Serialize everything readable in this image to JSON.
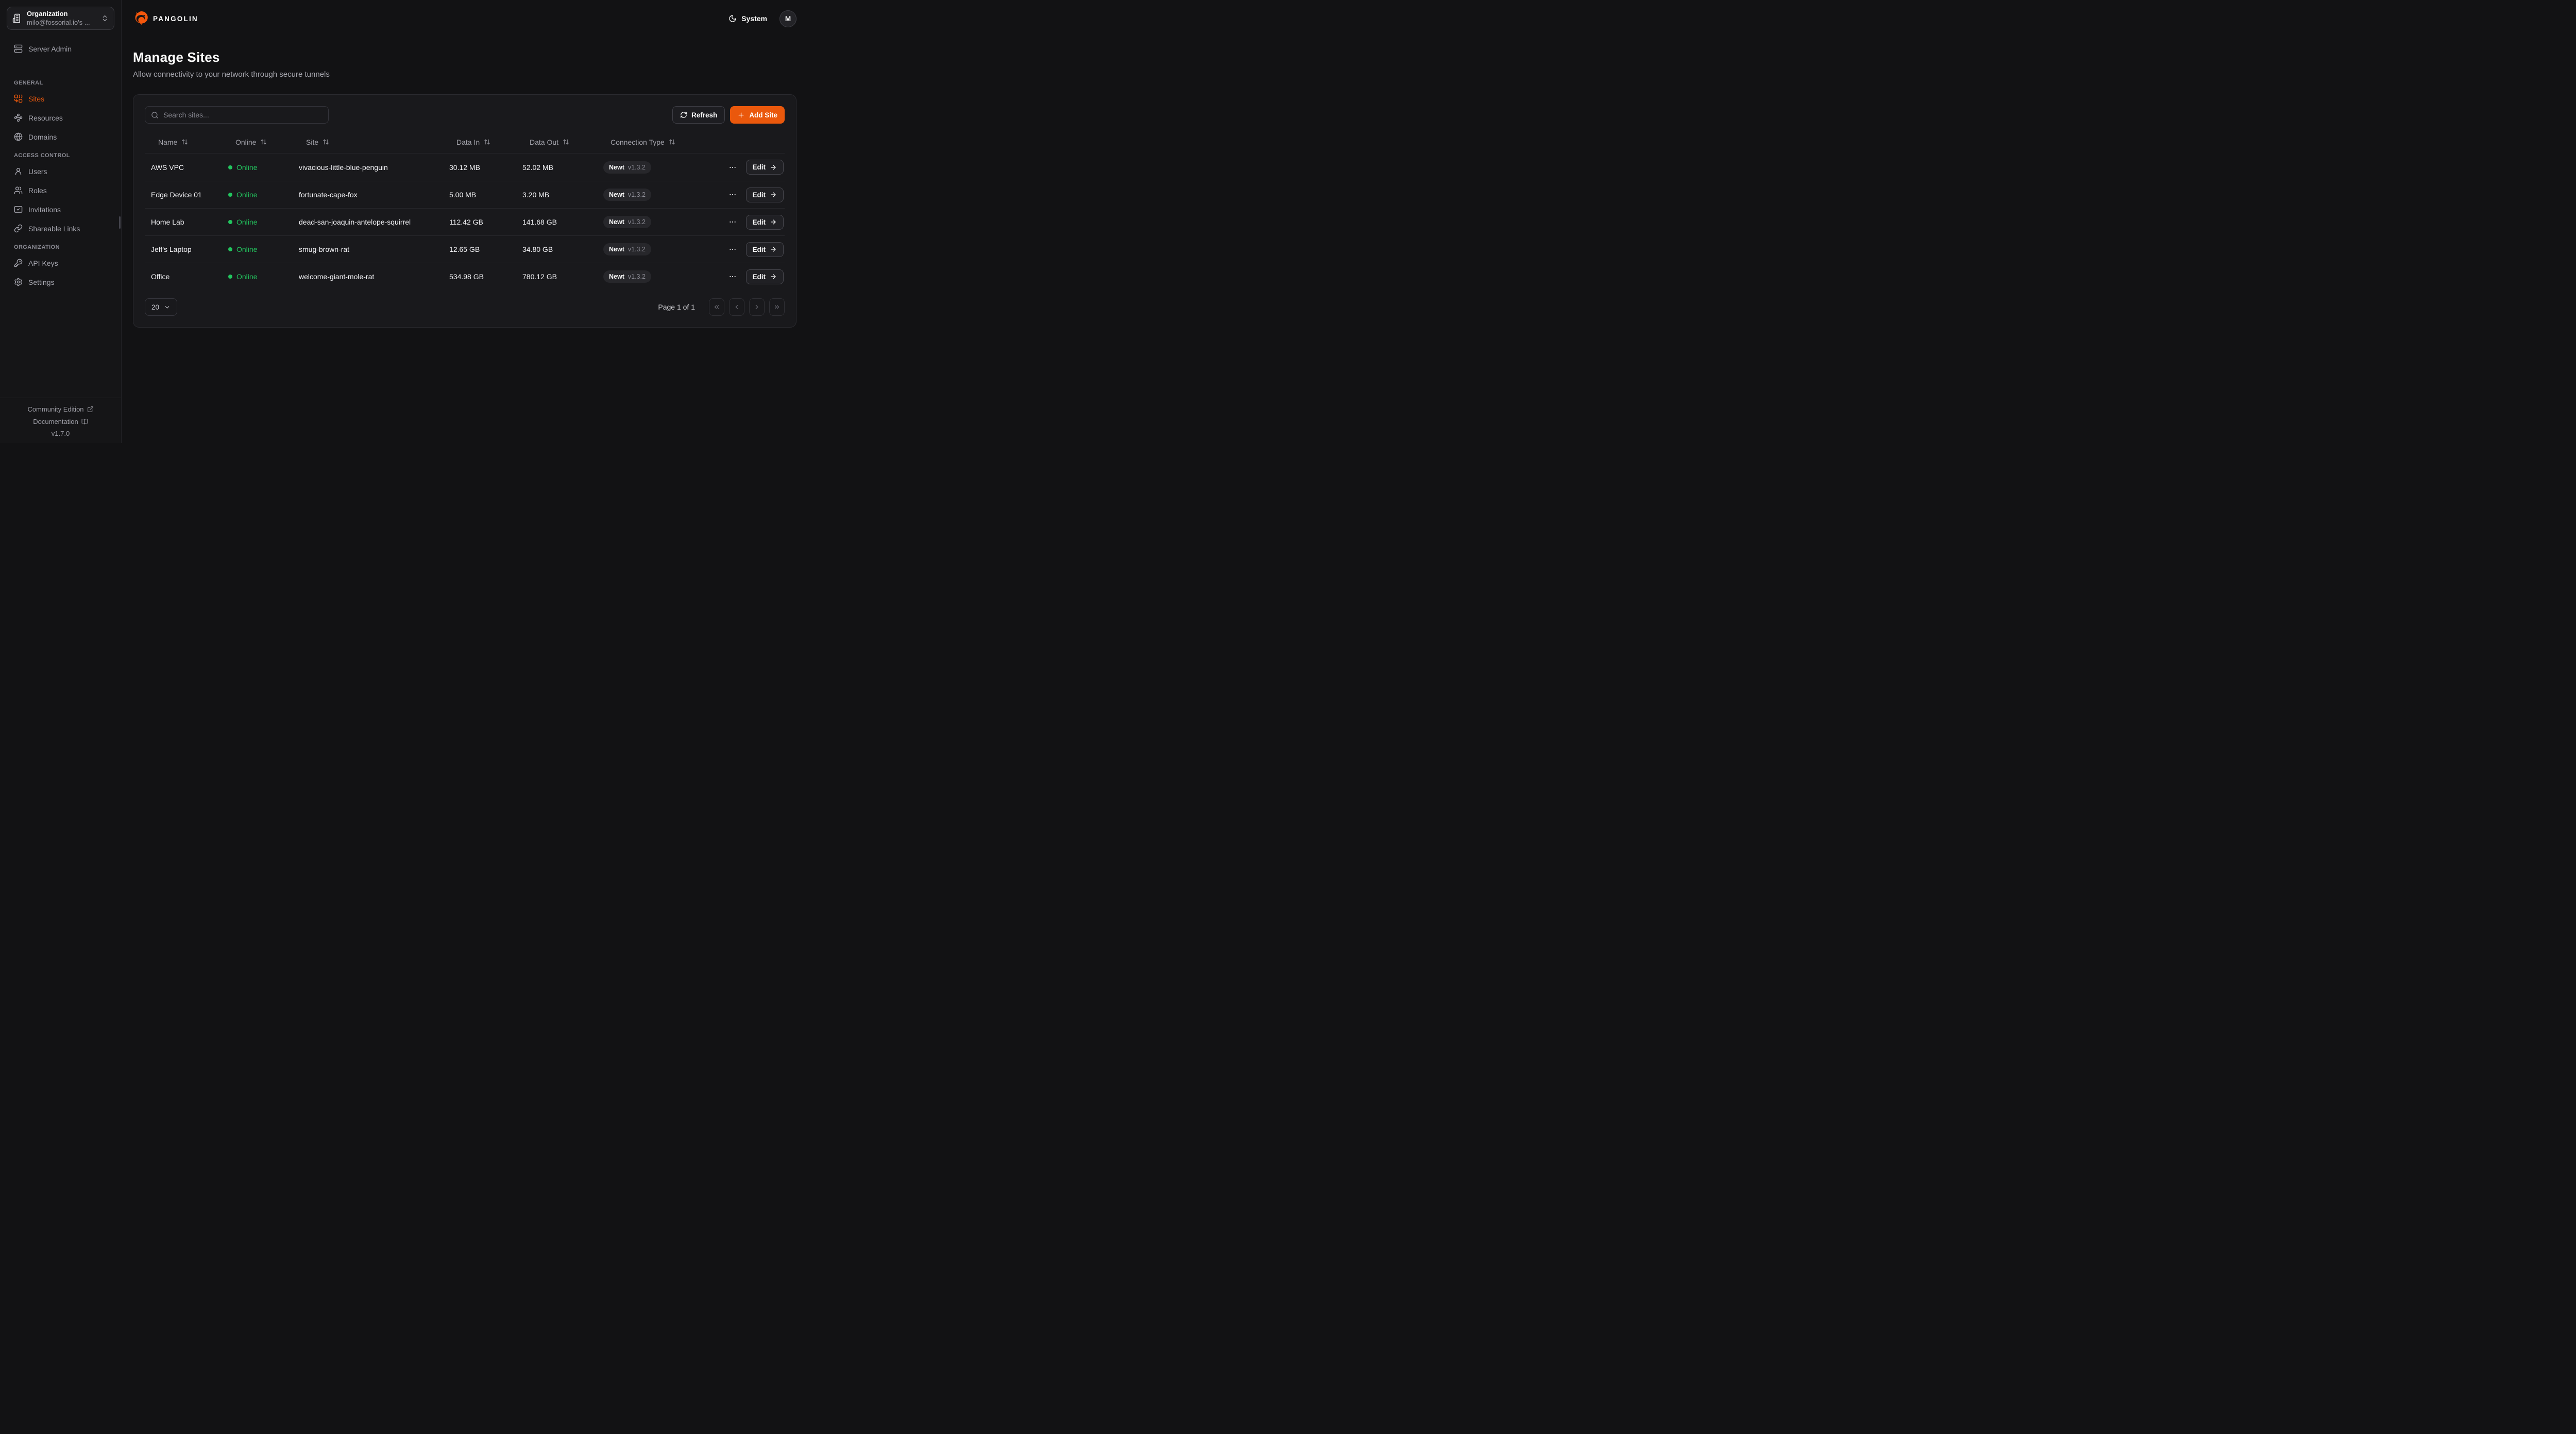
{
  "header": {
    "brand": "PANGOLIN",
    "theme_label": "System",
    "avatar_initial": "M"
  },
  "org_selector": {
    "label": "Organization",
    "value": "milo@fossorial.io's ..."
  },
  "sidebar": {
    "server_admin_label": "Server Admin",
    "sections": [
      {
        "heading": "GENERAL",
        "items": [
          {
            "label": "Sites"
          },
          {
            "label": "Resources"
          },
          {
            "label": "Domains"
          }
        ]
      },
      {
        "heading": "ACCESS CONTROL",
        "items": [
          {
            "label": "Users"
          },
          {
            "label": "Roles"
          },
          {
            "label": "Invitations"
          },
          {
            "label": "Shareable Links"
          }
        ]
      },
      {
        "heading": "ORGANIZATION",
        "items": [
          {
            "label": "API Keys"
          },
          {
            "label": "Settings"
          }
        ]
      }
    ],
    "footer": {
      "community_edition": "Community Edition",
      "documentation": "Documentation",
      "version": "v1.7.0"
    }
  },
  "page": {
    "title": "Manage Sites",
    "subtitle": "Allow connectivity to your network through secure tunnels"
  },
  "toolbar": {
    "search_placeholder": "Search sites...",
    "refresh": "Refresh",
    "add_site": "Add Site"
  },
  "table": {
    "headers": {
      "name": "Name",
      "online": "Online",
      "site": "Site",
      "data_in": "Data In",
      "data_out": "Data Out",
      "connection_type": "Connection Type"
    },
    "rows": [
      {
        "name": "AWS VPC",
        "status": "Online",
        "site": "vivacious-little-blue-penguin",
        "data_in": "30.12 MB",
        "data_out": "52.02 MB",
        "connection": "Newt",
        "version": "v1.3.2",
        "edit": "Edit"
      },
      {
        "name": "Edge Device 01",
        "status": "Online",
        "site": "fortunate-cape-fox",
        "data_in": "5.00 MB",
        "data_out": "3.20 MB",
        "connection": "Newt",
        "version": "v1.3.2",
        "edit": "Edit"
      },
      {
        "name": "Home Lab",
        "status": "Online",
        "site": "dead-san-joaquin-antelope-squirrel",
        "data_in": "112.42 GB",
        "data_out": "141.68 GB",
        "connection": "Newt",
        "version": "v1.3.2",
        "edit": "Edit"
      },
      {
        "name": "Jeff's Laptop",
        "status": "Online",
        "site": "smug-brown-rat",
        "data_in": "12.65 GB",
        "data_out": "34.80 GB",
        "connection": "Newt",
        "version": "v1.3.2",
        "edit": "Edit"
      },
      {
        "name": "Office",
        "status": "Online",
        "site": "welcome-giant-mole-rat",
        "data_in": "534.98 GB",
        "data_out": "780.12 GB",
        "connection": "Newt",
        "version": "v1.3.2",
        "edit": "Edit"
      }
    ]
  },
  "pagination": {
    "page_size": "20",
    "page_info": "Page 1 of 1"
  },
  "colors": {
    "accent": "#ea580c",
    "online_green": "#22c55e"
  }
}
